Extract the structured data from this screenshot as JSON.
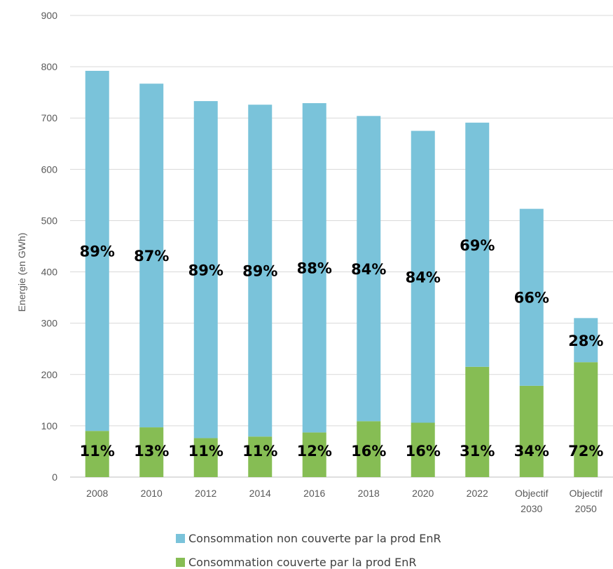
{
  "chart_data": {
    "type": "bar",
    "stacked": true,
    "categories": [
      [
        "2008"
      ],
      [
        "2010"
      ],
      [
        "2012"
      ],
      [
        "2014"
      ],
      [
        "2016"
      ],
      [
        "2018"
      ],
      [
        "2020"
      ],
      [
        "2022"
      ],
      [
        "Objectif",
        "2030"
      ],
      [
        "Objectif",
        "2050"
      ]
    ],
    "series": [
      {
        "name": "Consommation couverte par la prod EnR",
        "color": "#86bd54",
        "values": [
          90,
          97,
          76,
          79,
          87,
          109,
          106,
          215,
          178,
          224
        ],
        "labels": [
          "11%",
          "13%",
          "11%",
          "11%",
          "12%",
          "16%",
          "16%",
          "31%",
          "34%",
          "72%"
        ]
      },
      {
        "name": "Consommation non couverte par la prod EnR",
        "color": "#7ac3da",
        "values": [
          702,
          670,
          657,
          647,
          642,
          595,
          569,
          476,
          345,
          86
        ],
        "labels": [
          "89%",
          "87%",
          "89%",
          "89%",
          "88%",
          "84%",
          "84%",
          "69%",
          "66%",
          "28%"
        ]
      }
    ],
    "ylabel": "Energie (en  GWh)",
    "xlabel": "",
    "ylim": [
      0,
      900
    ],
    "yticks": [
      0,
      100,
      200,
      300,
      400,
      500,
      600,
      700,
      800,
      900
    ],
    "grid": true,
    "legend_position": "bottom"
  },
  "legend": {
    "non_covered": "Consommation non couverte par la prod EnR",
    "covered": "Consommation couverte par la prod EnR"
  }
}
